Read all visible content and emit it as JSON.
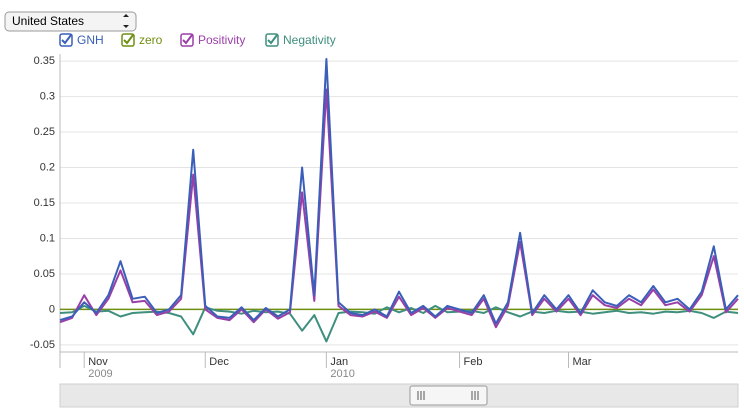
{
  "dropdown": {
    "selected": "United States"
  },
  "chart_data": {
    "type": "line",
    "categories": [
      null,
      null,
      "Nov",
      null,
      null,
      null,
      null,
      null,
      null,
      null,
      null,
      null,
      "Dec",
      null,
      null,
      null,
      null,
      null,
      null,
      null,
      null,
      null,
      "Jan",
      null,
      null,
      null,
      null,
      null,
      null,
      null,
      null,
      null,
      null,
      "Feb",
      null,
      null,
      null,
      null,
      null,
      null,
      null,
      null,
      "Mar",
      null,
      null,
      null,
      null,
      null,
      null,
      null,
      null,
      null,
      null,
      null,
      null,
      null,
      null
    ],
    "x_sublabels": [
      null,
      null,
      "2009",
      null,
      null,
      null,
      null,
      null,
      null,
      null,
      null,
      null,
      null,
      null,
      null,
      null,
      null,
      null,
      null,
      null,
      null,
      null,
      "2010",
      null,
      null,
      null,
      null,
      null,
      null,
      null,
      null,
      null,
      null,
      null,
      null,
      null,
      null,
      null,
      null,
      null,
      null,
      null,
      null,
      null,
      null,
      null,
      null,
      null,
      null,
      null,
      null,
      null,
      null,
      null,
      null,
      null,
      null
    ],
    "ylim": [
      -0.06,
      0.36
    ],
    "yticks": [
      -0.05,
      0,
      0.05,
      0.1,
      0.15,
      0.2,
      0.25,
      0.3,
      0.35
    ],
    "grid": true,
    "series": [
      {
        "name": "GNH",
        "color": "#3a5fb8",
        "values": [
          -0.015,
          -0.01,
          0.01,
          -0.005,
          0.02,
          0.068,
          0.015,
          0.018,
          -0.005,
          0.0,
          0.02,
          0.225,
          0.005,
          -0.01,
          -0.012,
          0.003,
          -0.015,
          0.002,
          -0.01,
          0.0,
          0.2,
          0.02,
          0.353,
          0.01,
          -0.005,
          -0.008,
          0.0,
          -0.01,
          0.025,
          -0.005,
          0.005,
          -0.01,
          0.005,
          0.0,
          -0.005,
          0.02,
          -0.02,
          0.01,
          0.108,
          -0.005,
          0.02,
          0.0,
          0.02,
          -0.005,
          0.027,
          0.01,
          0.005,
          0.02,
          0.01,
          0.033,
          0.01,
          0.015,
          0.0,
          0.025,
          0.089,
          0.0,
          0.02
        ]
      },
      {
        "name": "zero",
        "color": "#6f8f12",
        "values": [
          0,
          0,
          0,
          0,
          0,
          0,
          0,
          0,
          0,
          0,
          0,
          0,
          0,
          0,
          0,
          0,
          0,
          0,
          0,
          0,
          0,
          0,
          0,
          0,
          0,
          0,
          0,
          0,
          0,
          0,
          0,
          0,
          0,
          0,
          0,
          0,
          0,
          0,
          0,
          0,
          0,
          0,
          0,
          0,
          0,
          0,
          0,
          0,
          0,
          0,
          0,
          0,
          0,
          0,
          0,
          0,
          0
        ]
      },
      {
        "name": "Positivity",
        "color": "#9b3fa8",
        "values": [
          -0.018,
          -0.012,
          0.02,
          -0.008,
          0.015,
          0.055,
          0.01,
          0.012,
          -0.008,
          -0.003,
          0.015,
          0.19,
          0.0,
          -0.012,
          -0.015,
          0.0,
          -0.018,
          0.0,
          -0.013,
          -0.004,
          0.165,
          0.012,
          0.31,
          0.005,
          -0.008,
          -0.01,
          -0.003,
          -0.012,
          0.018,
          -0.008,
          0.002,
          -0.012,
          0.002,
          -0.003,
          -0.008,
          0.015,
          -0.025,
          0.005,
          0.095,
          -0.008,
          0.015,
          -0.003,
          0.015,
          -0.008,
          0.02,
          0.006,
          0.002,
          0.015,
          0.006,
          0.028,
          0.006,
          0.01,
          -0.003,
          0.02,
          0.075,
          -0.004,
          0.015
        ]
      },
      {
        "name": "Negativity",
        "color": "#3f8f7f",
        "values": [
          -0.005,
          -0.004,
          0.005,
          -0.003,
          -0.002,
          -0.01,
          -0.005,
          -0.004,
          -0.003,
          -0.005,
          -0.01,
          -0.035,
          0.003,
          -0.002,
          -0.003,
          -0.006,
          -0.002,
          -0.004,
          -0.003,
          -0.006,
          -0.03,
          -0.008,
          -0.045,
          -0.005,
          -0.003,
          -0.004,
          -0.006,
          0.003,
          -0.004,
          0.002,
          -0.005,
          0.005,
          -0.004,
          -0.003,
          -0.002,
          -0.005,
          0.003,
          -0.004,
          -0.01,
          -0.003,
          -0.005,
          -0.002,
          -0.004,
          -0.003,
          -0.006,
          -0.004,
          -0.002,
          -0.005,
          -0.004,
          -0.006,
          -0.003,
          -0.004,
          -0.002,
          -0.005,
          -0.012,
          -0.003,
          -0.005
        ]
      }
    ]
  }
}
